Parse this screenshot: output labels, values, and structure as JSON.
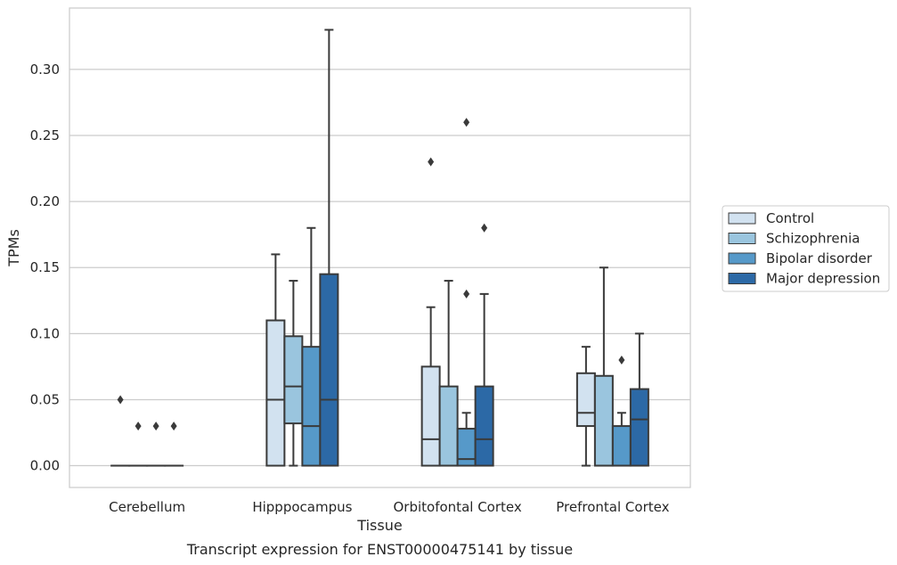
{
  "chart_data": {
    "type": "box",
    "title": "",
    "caption": "Transcript expression for ENST00000475141 by tissue",
    "xlabel": "Tissue",
    "ylabel": "TPMs",
    "ylim": [
      -0.0165,
      0.3465
    ],
    "yticks": [
      "0.00",
      "0.05",
      "0.10",
      "0.15",
      "0.20",
      "0.25",
      "0.30"
    ],
    "ytick_values": [
      0,
      0.05,
      0.1,
      0.15,
      0.2,
      0.25,
      0.3
    ],
    "grid": "horizontal",
    "legend_position": "right",
    "categories": [
      "Cerebellum",
      "Hipppocampus",
      "Orbitofontal Cortex",
      "Prefrontal Cortex"
    ],
    "series": [
      {
        "name": "Control",
        "color": "#d2e2f0",
        "boxes": [
          {
            "q1": 0,
            "median": 0,
            "q3": 0,
            "whisker_low": 0,
            "whisker_high": 0,
            "outliers": [
              0.05
            ]
          },
          {
            "q1": 0,
            "median": 0.05,
            "q3": 0.11,
            "whisker_low": 0,
            "whisker_high": 0.16,
            "outliers": []
          },
          {
            "q1": 0,
            "median": 0.02,
            "q3": 0.075,
            "whisker_low": 0,
            "whisker_high": 0.12,
            "outliers": [
              0.23
            ]
          },
          {
            "q1": 0.03,
            "median": 0.04,
            "q3": 0.07,
            "whisker_low": 0,
            "whisker_high": 0.09,
            "outliers": []
          }
        ]
      },
      {
        "name": "Schizophrenia",
        "color": "#9ac5de",
        "boxes": [
          {
            "q1": 0,
            "median": 0,
            "q3": 0,
            "whisker_low": 0,
            "whisker_high": 0,
            "outliers": [
              0.03
            ]
          },
          {
            "q1": 0.032,
            "median": 0.06,
            "q3": 0.098,
            "whisker_low": 0,
            "whisker_high": 0.14,
            "outliers": []
          },
          {
            "q1": 0,
            "median": 0,
            "q3": 0.06,
            "whisker_low": 0,
            "whisker_high": 0.14,
            "outliers": []
          },
          {
            "q1": 0,
            "median": 0,
            "q3": 0.068,
            "whisker_low": 0,
            "whisker_high": 0.15,
            "outliers": []
          }
        ]
      },
      {
        "name": "Bipolar disorder",
        "color": "#5699c9",
        "boxes": [
          {
            "q1": 0,
            "median": 0,
            "q3": 0,
            "whisker_low": 0,
            "whisker_high": 0,
            "outliers": [
              0.03
            ]
          },
          {
            "q1": 0,
            "median": 0.03,
            "q3": 0.09,
            "whisker_low": 0,
            "whisker_high": 0.18,
            "outliers": []
          },
          {
            "q1": 0,
            "median": 0.005,
            "q3": 0.028,
            "whisker_low": 0,
            "whisker_high": 0.04,
            "outliers": [
              0.13,
              0.26
            ]
          },
          {
            "q1": 0,
            "median": 0,
            "q3": 0.03,
            "whisker_low": 0,
            "whisker_high": 0.04,
            "outliers": [
              0.08
            ]
          }
        ]
      },
      {
        "name": "Major depression",
        "color": "#2c69a6",
        "boxes": [
          {
            "q1": 0,
            "median": 0,
            "q3": 0,
            "whisker_low": 0,
            "whisker_high": 0,
            "outliers": [
              0.03
            ]
          },
          {
            "q1": 0,
            "median": 0.05,
            "q3": 0.145,
            "whisker_low": 0,
            "whisker_high": 0.33,
            "outliers": []
          },
          {
            "q1": 0,
            "median": 0.02,
            "q3": 0.06,
            "whisker_low": 0,
            "whisker_high": 0.13,
            "outliers": [
              0.18
            ]
          },
          {
            "q1": 0,
            "median": 0.035,
            "q3": 0.058,
            "whisker_low": 0,
            "whisker_high": 0.1,
            "outliers": []
          }
        ]
      }
    ],
    "colors": {
      "line": "#3a3a3a",
      "grid": "#cccccc",
      "frame": "#cccccc",
      "text": "#262626"
    }
  }
}
